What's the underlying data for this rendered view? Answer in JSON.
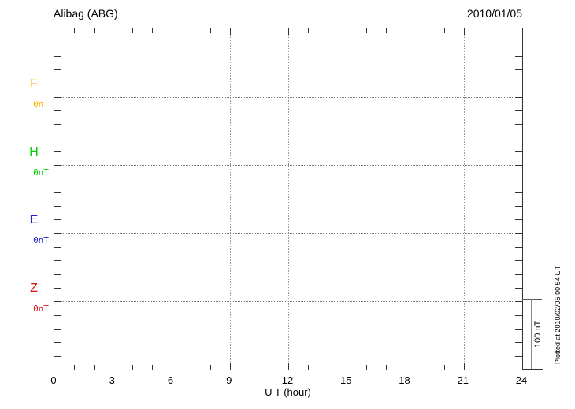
{
  "header": {
    "title": "Alibag (ABG)",
    "date": "2010/01/05"
  },
  "plot": {
    "x_axis": {
      "label": "U T (hour)",
      "tick_labels": [
        "0",
        "3",
        "6",
        "9",
        "12",
        "15",
        "18",
        "21",
        "24"
      ],
      "hours_total": 24,
      "major_step_hours": 3
    },
    "components": [
      {
        "name": "F",
        "unit_label": "0nT",
        "color": "#FFB000"
      },
      {
        "name": "H",
        "unit_label": "0nT",
        "color": "#00D000"
      },
      {
        "name": "E",
        "unit_label": "0nT",
        "color": "#2222CC"
      },
      {
        "name": "Z",
        "unit_label": "0nT",
        "color": "#DD1111"
      }
    ]
  },
  "scale_bar": {
    "label": "100 nT"
  },
  "footer_note": "Plotted at 2010/02/05 00:54 UT",
  "colors": {
    "axis": "#333333",
    "grid": "#999999",
    "text": "#000000"
  },
  "chart_data": {
    "type": "line",
    "title": "Alibag (ABG)",
    "date": "2010/01/05",
    "xlabel": "U T (hour)",
    "xlim": [
      0,
      24
    ],
    "x_ticks": [
      0,
      3,
      6,
      9,
      12,
      15,
      18,
      21,
      24
    ],
    "grid": "dotted at 3-hour intervals and at each component baseline",
    "scale_bar_nT": 100,
    "series": [
      {
        "name": "F",
        "baseline_nT": 0,
        "color": "#FFB000",
        "values": []
      },
      {
        "name": "H",
        "baseline_nT": 0,
        "color": "#00D000",
        "values": []
      },
      {
        "name": "E",
        "baseline_nT": 0,
        "color": "#2222CC",
        "values": []
      },
      {
        "name": "Z",
        "baseline_nT": 0,
        "color": "#DD1111",
        "values": []
      }
    ],
    "note_visible_on_plot": "no data traces drawn; only baselines at 0 nT"
  }
}
